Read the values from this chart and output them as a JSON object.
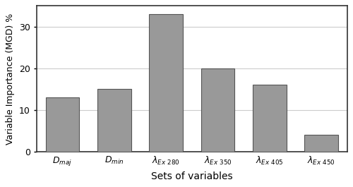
{
  "categories": [
    "$D_{maj}$",
    "$D_{min}$",
    "$\\lambda_{Ex\\ 280}$",
    "$\\lambda_{Ex\\ 350}$",
    "$\\lambda_{Ex\\ 405}$",
    "$\\lambda_{Ex\\ 450}$"
  ],
  "values": [
    13,
    15,
    33,
    20,
    16,
    4
  ],
  "bar_color": "#999999",
  "bar_edgecolor": "#555555",
  "ylabel": "Variable Importance (MGD) %",
  "xlabel": "Sets of variables",
  "ylim": [
    0,
    35
  ],
  "yticks": [
    0,
    10,
    20,
    30
  ],
  "grid_color": "#cccccc",
  "background_color": "#ffffff",
  "bar_width": 0.65,
  "ylabel_fontsize": 9,
  "xlabel_fontsize": 10,
  "tick_fontsize": 9,
  "figsize": [
    5.0,
    2.65
  ],
  "dpi": 100
}
